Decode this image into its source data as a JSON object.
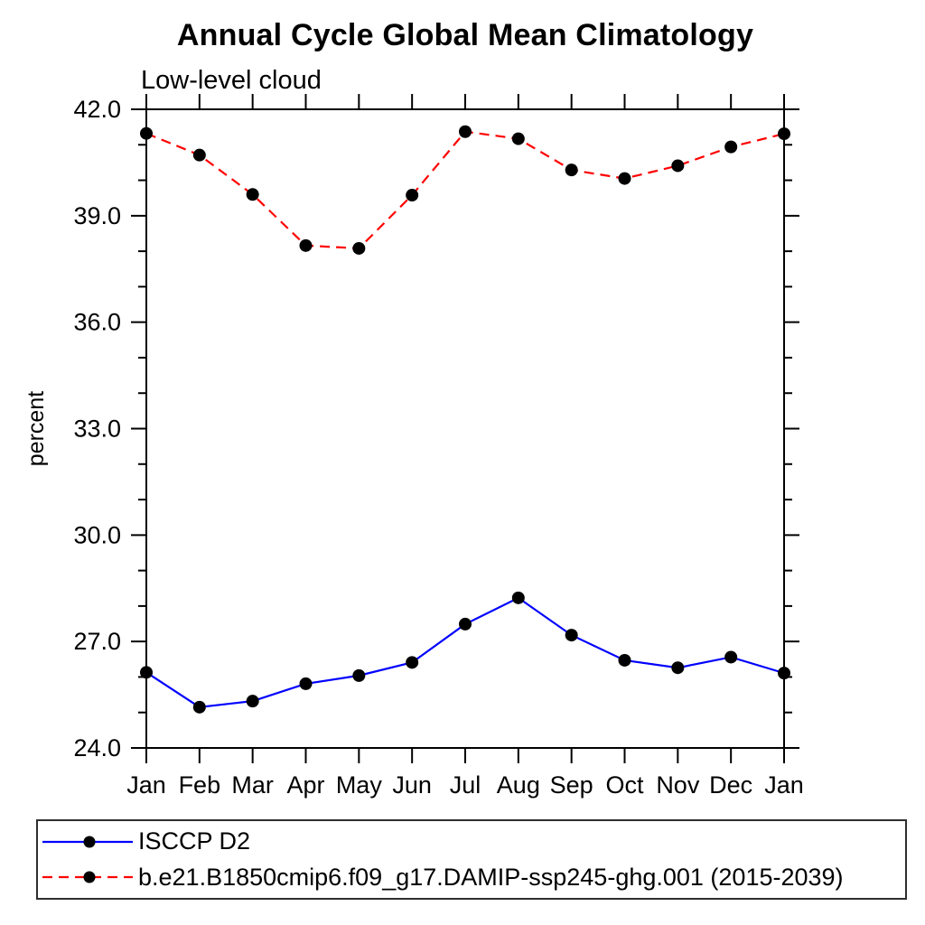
{
  "page": {
    "background": "#ffffff"
  },
  "chart_data": {
    "type": "line",
    "title": "Annual Cycle Global Mean Climatology",
    "subtitle": "Low-level cloud",
    "ylabel": "percent",
    "xlabel": "",
    "categories": [
      "Jan",
      "Feb",
      "Mar",
      "Apr",
      "May",
      "Jun",
      "Jul",
      "Aug",
      "Sep",
      "Oct",
      "Nov",
      "Dec",
      "Jan"
    ],
    "ylim": [
      24.0,
      42.0
    ],
    "ytick_values": [
      24,
      27,
      30,
      33,
      36,
      39,
      42
    ],
    "ytick_labels": [
      "24.0",
      "27.0",
      "30.0",
      "33.0",
      "36.0",
      "39.0",
      "42.0"
    ],
    "yminor_step": 1.0,
    "grid": "off",
    "legend_position": "bottom",
    "axis_color": "#000000",
    "marker": {
      "shape": "circle",
      "color": "#000000"
    },
    "series": [
      {
        "name": "ISCCP D2",
        "color": "#0000ff",
        "line_style": "solid",
        "values": [
          26.13,
          25.15,
          25.32,
          25.81,
          26.04,
          26.41,
          27.49,
          28.23,
          27.18,
          26.47,
          26.26,
          26.56,
          26.11
        ]
      },
      {
        "name": "b.e21.B1850cmip6.f09_g17.DAMIP-ssp245-ghg.001 (2015-2039)",
        "color": "#ff0000",
        "line_style": "dashed",
        "values": [
          41.32,
          40.71,
          39.6,
          38.16,
          38.08,
          39.58,
          41.37,
          41.17,
          40.29,
          40.05,
          40.41,
          40.94,
          41.31
        ]
      }
    ]
  }
}
